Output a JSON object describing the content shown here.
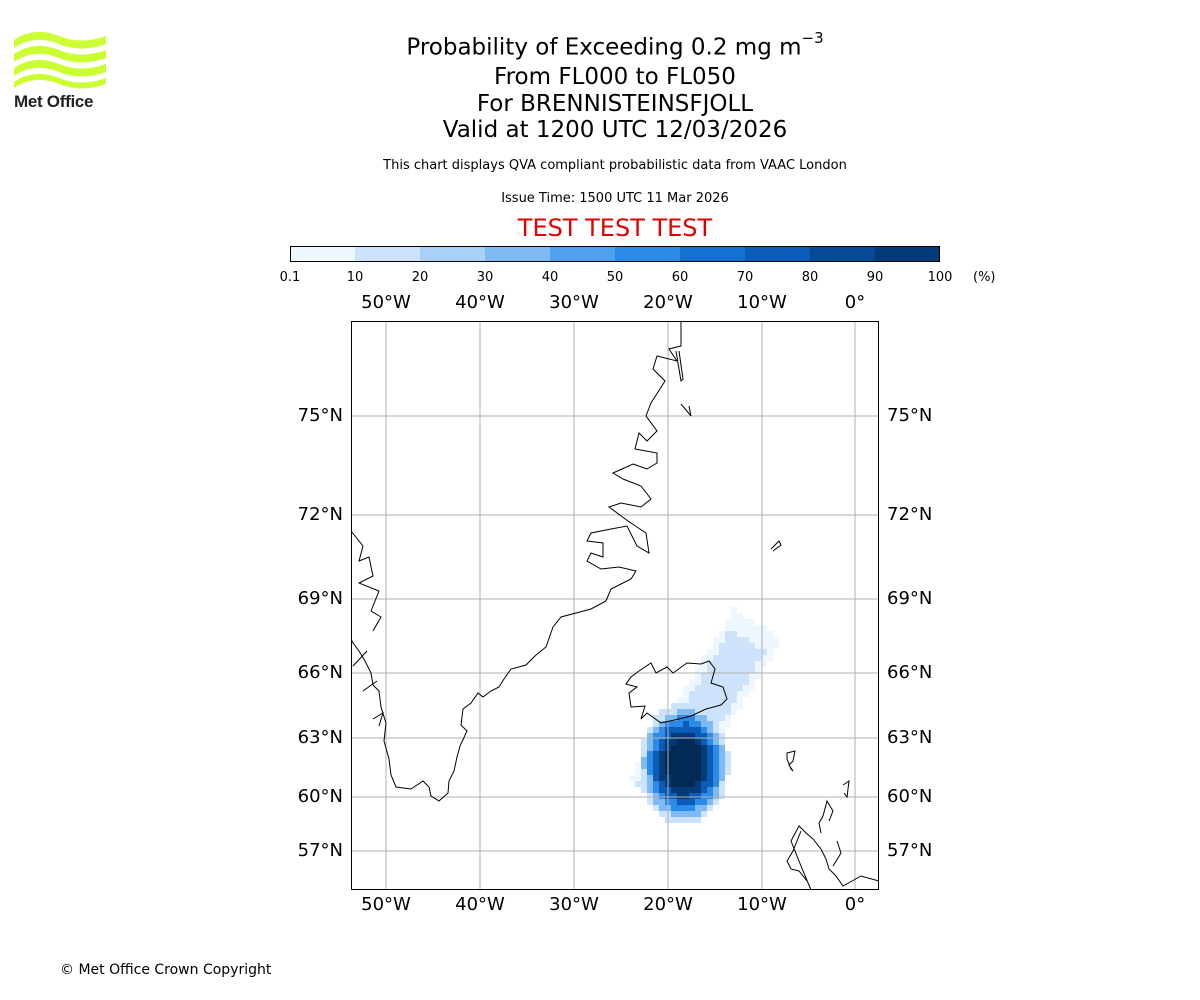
{
  "logo": {
    "text": "Met Office",
    "color": "#ccff33"
  },
  "header": {
    "title_main": "Probability of Exceeding 0.2 mg m",
    "title_sup": "−3",
    "flight_levels": "From FL000 to FL050",
    "volcano": "For BRENNISTEINSFJOLL",
    "valid_time": "Valid at 1200 UTC 12/03/2026",
    "description": "This chart displays QVA compliant probabilistic data from VAAC London",
    "issue_time": "Issue Time: 1500 UTC 11 Mar 2026",
    "test_banner": "TEST TEST TEST",
    "test_color": "#e00000"
  },
  "colorbar": {
    "ticks": [
      "0.1",
      "10",
      "20",
      "30",
      "40",
      "50",
      "60",
      "70",
      "80",
      "90",
      "100"
    ],
    "unit": "(%)",
    "colors": [
      "#eef6ff",
      "#cce3fb",
      "#a9d0f7",
      "#7fbaf3",
      "#4fa1ee",
      "#2b8be6",
      "#1471cf",
      "#0a5cb6",
      "#064a97",
      "#043a77",
      "#022a55"
    ]
  },
  "map": {
    "lon_labels": [
      "50°W",
      "40°W",
      "30°W",
      "20°W",
      "10°W",
      "0°"
    ],
    "lat_labels": [
      "75°N",
      "72°N",
      "69°N",
      "66°N",
      "63°N",
      "60°N",
      "57°N"
    ],
    "land_outline_color": "#000000",
    "grid_color": "#b0b0b0"
  },
  "footer": {
    "copyright": "© Met Office Crown Copyright"
  }
}
